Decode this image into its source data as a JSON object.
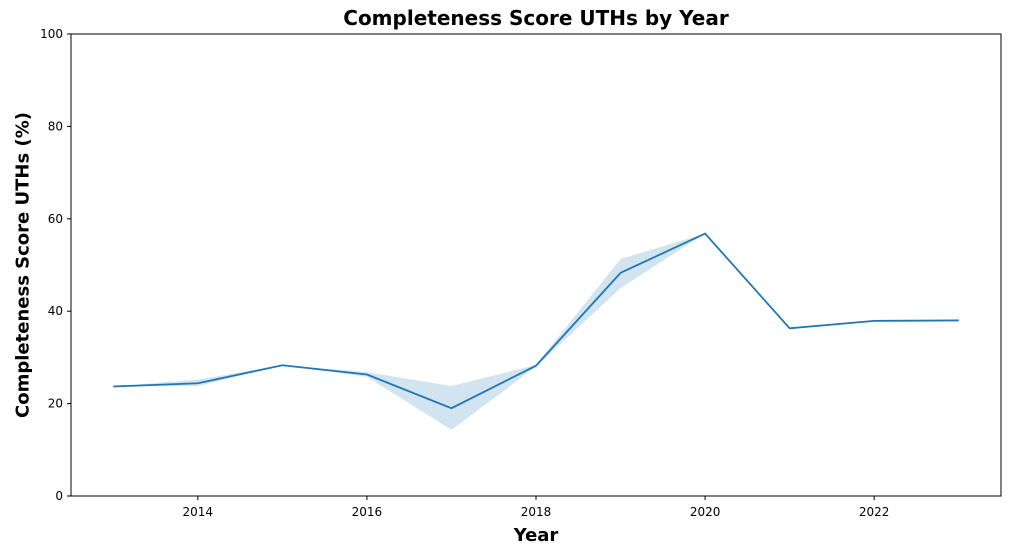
{
  "chart_data": {
    "type": "line",
    "title": "Completeness Score UTHs by Year",
    "xlabel": "Year",
    "ylabel": "Completeness Score UTHs (%)",
    "xlim": [
      2012.5,
      2023.5
    ],
    "ylim": [
      0,
      100
    ],
    "x_ticks": [
      2014,
      2016,
      2018,
      2020,
      2022
    ],
    "y_ticks": [
      0,
      20,
      40,
      60,
      80,
      100
    ],
    "grid": false,
    "legend": "none",
    "line_color": "#1f77b4",
    "band_color": "#1f77b4",
    "series": [
      {
        "x": [
          2013,
          2014,
          2015,
          2016,
          2017,
          2018,
          2019,
          2020,
          2021,
          2022,
          2023
        ],
        "values": [
          23.7,
          24.4,
          28.3,
          26.3,
          19.0,
          28.2,
          48.3,
          56.8,
          36.3,
          37.9,
          38.0
        ],
        "lower": [
          23.7,
          23.8,
          28.3,
          25.8,
          14.3,
          28.0,
          45.0,
          56.8,
          36.3,
          37.9,
          38.0
        ],
        "upper": [
          23.7,
          25.2,
          28.3,
          26.8,
          23.8,
          28.4,
          51.3,
          56.8,
          36.3,
          37.9,
          38.0
        ]
      }
    ]
  }
}
